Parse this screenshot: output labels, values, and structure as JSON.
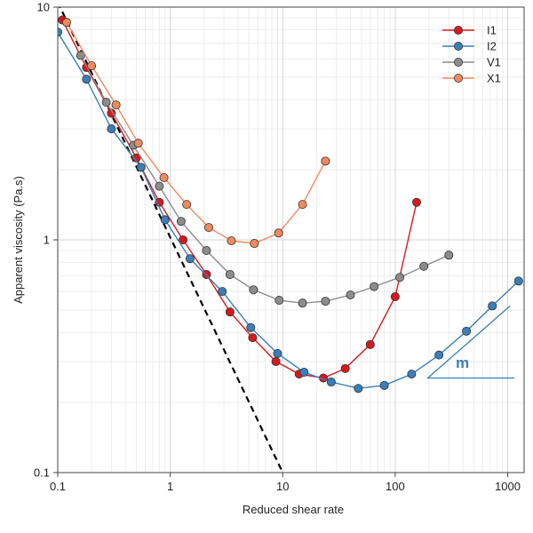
{
  "chart_data": {
    "type": "line",
    "xscale": "log",
    "yscale": "log",
    "xlabel": "Reduced shear rate",
    "ylabel": "Apparent viscosity (Pa.s)",
    "xlim": [
      0.1,
      1400
    ],
    "ylim": [
      0.1,
      10
    ],
    "x_ticks": [
      0.1,
      1,
      10,
      100,
      1000
    ],
    "x_tick_labels": [
      "0.1",
      "1",
      "10",
      "100",
      "1000"
    ],
    "y_ticks": [
      0.1,
      1,
      10
    ],
    "y_tick_labels": [
      "0.1",
      "1",
      "10"
    ],
    "grid": true,
    "legend_position": "top-right",
    "series": [
      {
        "name": "I1",
        "color": "#d7191c",
        "points": [
          [
            0.11,
            8.8
          ],
          [
            0.18,
            5.5
          ],
          [
            0.3,
            3.5
          ],
          [
            0.5,
            2.25
          ],
          [
            0.8,
            1.45
          ],
          [
            1.3,
            1.0
          ],
          [
            2.1,
            0.71
          ],
          [
            3.4,
            0.49
          ],
          [
            5.4,
            0.38
          ],
          [
            8.7,
            0.3
          ],
          [
            14,
            0.265
          ],
          [
            23,
            0.255
          ],
          [
            36,
            0.28
          ],
          [
            60,
            0.355
          ],
          [
            100,
            0.57
          ],
          [
            155,
            1.45
          ]
        ]
      },
      {
        "name": "I2",
        "color": "#3a7fb9",
        "points": [
          [
            0.1,
            7.8
          ],
          [
            0.18,
            4.9
          ],
          [
            0.3,
            3.0
          ],
          [
            0.55,
            2.05
          ],
          [
            0.9,
            1.22
          ],
          [
            1.5,
            0.83
          ],
          [
            2.9,
            0.6
          ],
          [
            5.2,
            0.42
          ],
          [
            9.0,
            0.325
          ],
          [
            15.5,
            0.27
          ],
          [
            27,
            0.245
          ],
          [
            47,
            0.23
          ],
          [
            80,
            0.237
          ],
          [
            140,
            0.265
          ],
          [
            245,
            0.32
          ],
          [
            430,
            0.405
          ],
          [
            730,
            0.52
          ],
          [
            1250,
            0.665
          ]
        ]
      },
      {
        "name": "V1",
        "color": "#8c8c8c",
        "points": [
          [
            0.16,
            6.2
          ],
          [
            0.27,
            3.9
          ],
          [
            0.47,
            2.55
          ],
          [
            0.8,
            1.7
          ],
          [
            1.25,
            1.2
          ],
          [
            2.1,
            0.9
          ],
          [
            3.4,
            0.71
          ],
          [
            5.5,
            0.61
          ],
          [
            9.3,
            0.55
          ],
          [
            15,
            0.535
          ],
          [
            24,
            0.545
          ],
          [
            40,
            0.58
          ],
          [
            65,
            0.63
          ],
          [
            110,
            0.69
          ],
          [
            180,
            0.77
          ],
          [
            300,
            0.86
          ]
        ]
      },
      {
        "name": "X1",
        "color": "#f08a5d",
        "points": [
          [
            0.12,
            8.6
          ],
          [
            0.2,
            5.6
          ],
          [
            0.33,
            3.8
          ],
          [
            0.52,
            2.6
          ],
          [
            0.88,
            1.85
          ],
          [
            1.4,
            1.42
          ],
          [
            2.2,
            1.13
          ],
          [
            3.5,
            0.99
          ],
          [
            5.6,
            0.965
          ],
          [
            9.2,
            1.07
          ],
          [
            15,
            1.42
          ],
          [
            24,
            2.18
          ]
        ]
      }
    ],
    "reference_line": {
      "style": "dashed",
      "color": "#000000",
      "points": [
        [
          0.1,
          10.5
        ],
        [
          10,
          0.1
        ]
      ]
    },
    "slope_annotation": {
      "label": "m",
      "color": "#3a7fb9",
      "triangle": [
        [
          195,
          0.255
        ],
        [
          1150,
          0.255
        ],
        [
          1050,
          0.52
        ]
      ]
    }
  }
}
